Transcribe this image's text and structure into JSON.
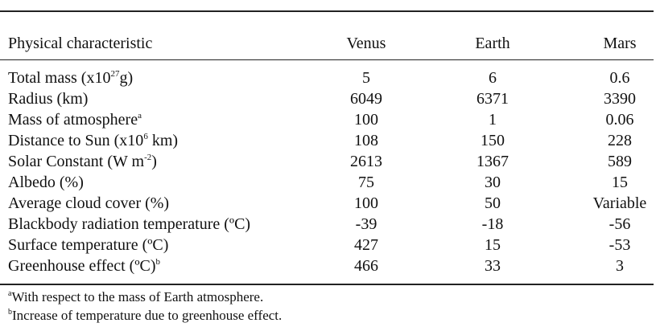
{
  "table": {
    "header": [
      "Physical characteristic",
      "Venus",
      "Earth",
      "Mars"
    ],
    "rows": [
      {
        "label": [
          "Total mass (x10",
          {
            "sup": "27"
          },
          "g)"
        ],
        "values": [
          5,
          6,
          0.6
        ]
      },
      {
        "label": [
          "Radius (km)"
        ],
        "values": [
          6049,
          6371,
          3390
        ]
      },
      {
        "label": [
          "Mass of atmosphere",
          {
            "sup": "a"
          }
        ],
        "values": [
          100,
          1,
          0.06
        ]
      },
      {
        "label": [
          "Distance to Sun (x10",
          {
            "sup": "6"
          },
          " km)"
        ],
        "values": [
          108,
          150,
          228
        ]
      },
      {
        "label": [
          "Solar Constant (W m",
          {
            "sup": "-2"
          },
          ")"
        ],
        "values": [
          2613,
          1367,
          589
        ]
      },
      {
        "label": [
          "Albedo (%)"
        ],
        "values": [
          75,
          30,
          15
        ]
      },
      {
        "label": [
          "Average cloud cover (%)"
        ],
        "values": [
          100,
          50,
          "Variable"
        ]
      },
      {
        "label": [
          "Blackbody radiation temperature (ºC)"
        ],
        "values": [
          -39,
          -18,
          -56
        ]
      },
      {
        "label": [
          "Surface temperature (ºC)"
        ],
        "values": [
          427,
          15,
          -53
        ]
      },
      {
        "label": [
          "Greenhouse effect (ºC)",
          {
            "sup": "b"
          }
        ],
        "values": [
          466,
          33,
          3
        ]
      }
    ],
    "footnotes": [
      {
        "sup": "a",
        "text": "With respect to the mass of Earth atmosphere."
      },
      {
        "sup": "b",
        "text": "Increase of temperature due to greenhouse effect."
      }
    ]
  }
}
